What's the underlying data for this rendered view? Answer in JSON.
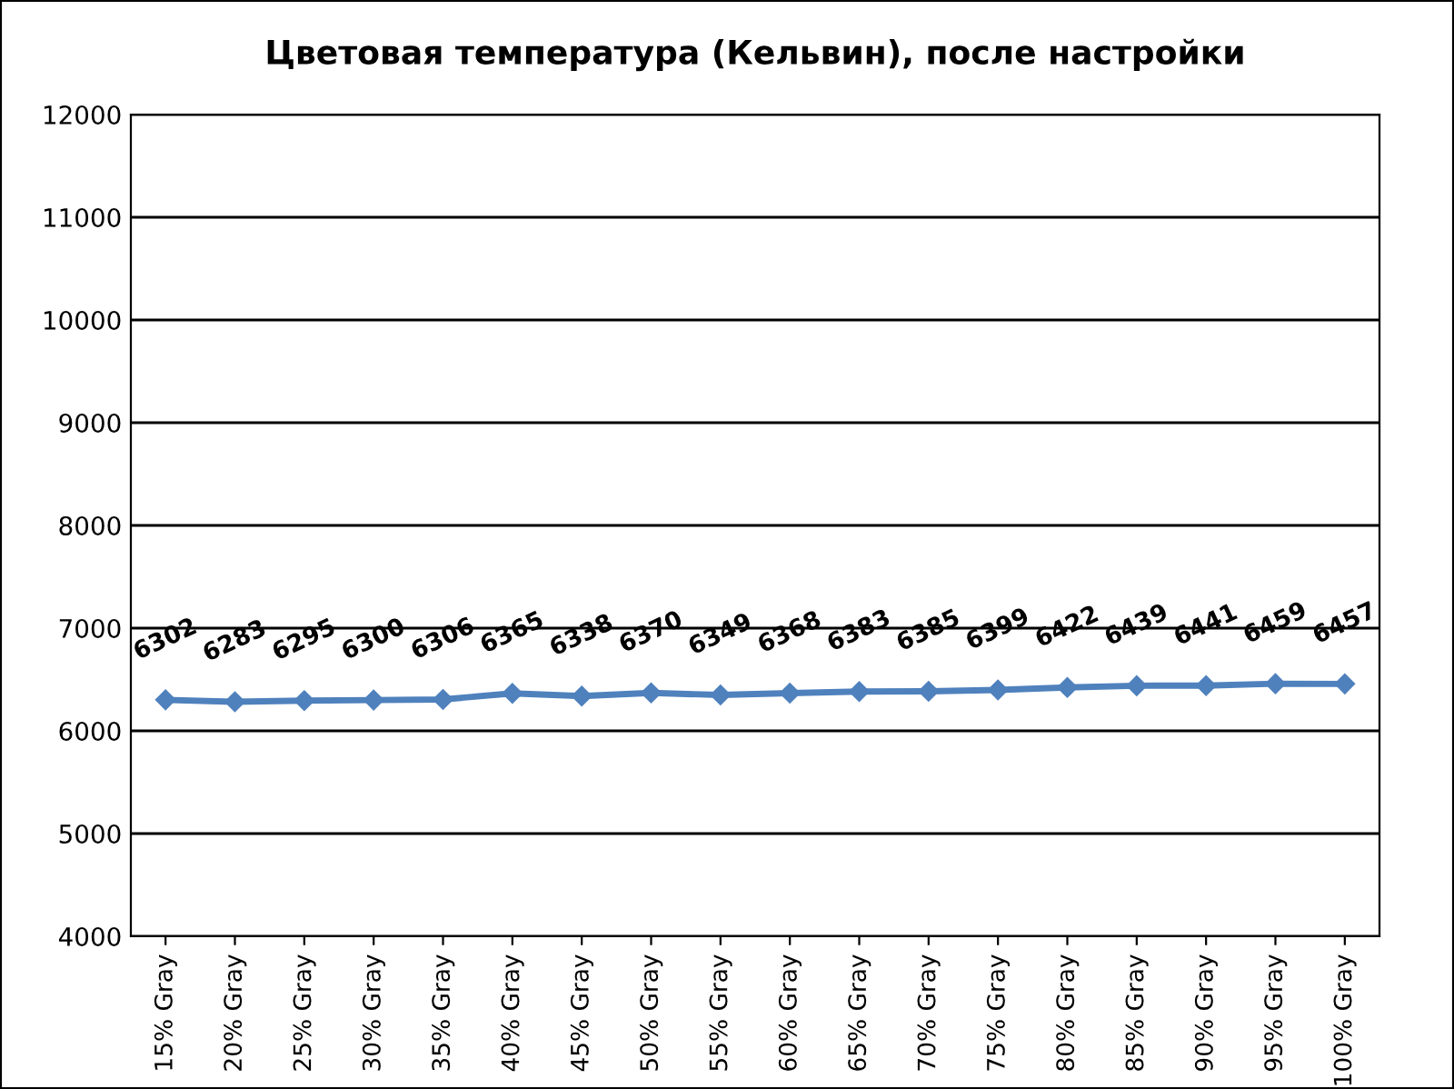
{
  "chart_data": {
    "type": "line",
    "title": "Цветовая температура (Кельвин), после настройки",
    "categories": [
      "15% Gray",
      "20% Gray",
      "25% Gray",
      "30% Gray",
      "35% Gray",
      "40% Gray",
      "45% Gray",
      "50% Gray",
      "55% Gray",
      "60% Gray",
      "65% Gray",
      "70% Gray",
      "75% Gray",
      "80% Gray",
      "85% Gray",
      "90% Gray",
      "95% Gray",
      "100% Gray"
    ],
    "series": [
      {
        "color": "#4f81bd",
        "values": [
          6302,
          6283,
          6295,
          6300,
          6306,
          6365,
          6338,
          6370,
          6349,
          6368,
          6383,
          6385,
          6399,
          6422,
          6439,
          6441,
          6459,
          6457
        ]
      }
    ],
    "ylim": [
      4000,
      12000
    ],
    "yticks": [
      4000,
      5000,
      6000,
      7000,
      8000,
      9000,
      10000,
      11000,
      12000
    ],
    "grid": "y",
    "marker": "diamond",
    "line_style": "solid",
    "data_labels": true
  }
}
